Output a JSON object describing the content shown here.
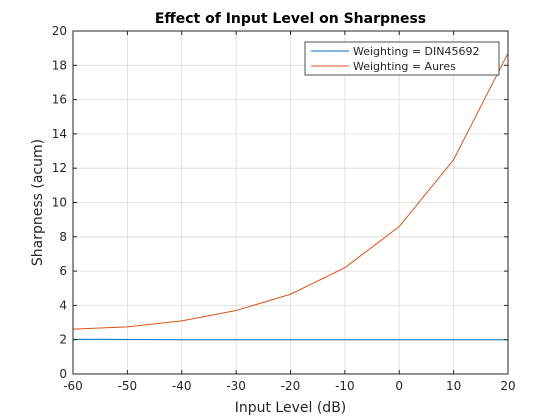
{
  "chart_data": {
    "type": "line",
    "title": "Effect of Input Level on Sharpness",
    "xlabel": "Input Level (dB)",
    "ylabel": "Sharpness (acum)",
    "xlim": [
      -60,
      20
    ],
    "ylim": [
      0,
      20
    ],
    "xticks": [
      -60,
      -50,
      -40,
      -30,
      -20,
      -10,
      0,
      10,
      20
    ],
    "yticks": [
      0,
      2,
      4,
      6,
      8,
      10,
      12,
      14,
      16,
      18,
      20
    ],
    "grid": true,
    "legend_position": "top-right",
    "x": [
      -60,
      -55,
      -50,
      -40,
      -30,
      -20,
      -10,
      0,
      10,
      20
    ],
    "series": [
      {
        "name": "Weighting = DIN45692",
        "color": "#0072BD",
        "values": [
          2.02,
          2.03,
          2.01,
          2.0,
          2.0,
          2.0,
          2.0,
          2.0,
          2.0,
          2.0
        ]
      },
      {
        "name": "Weighting = Aures",
        "color": "#D95319",
        "values": [
          2.62,
          2.68,
          2.75,
          3.1,
          3.7,
          4.65,
          6.2,
          8.6,
          12.5,
          18.7
        ]
      }
    ]
  }
}
